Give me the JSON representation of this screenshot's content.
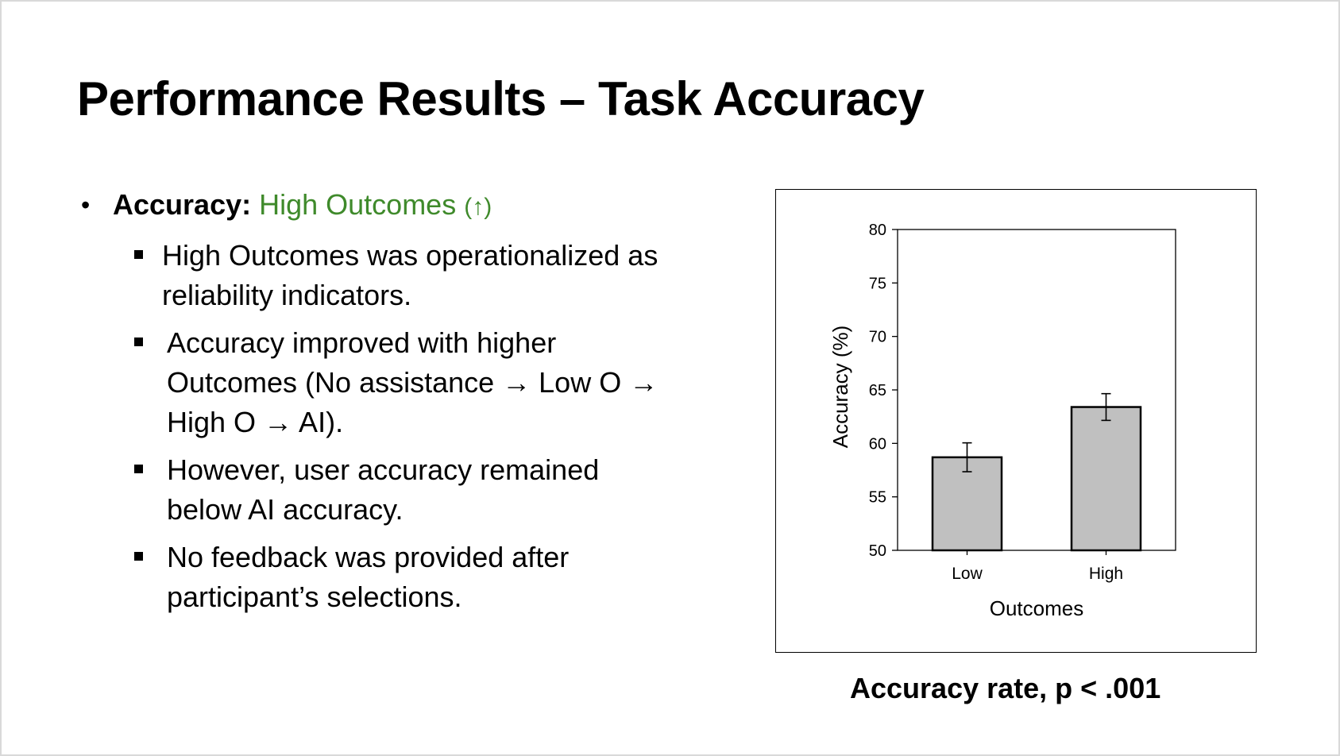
{
  "slide": {
    "title": "Performance Results – Task Accuracy",
    "bullet": {
      "lead": "Accuracy:",
      "highlight": "High Outcomes",
      "arrow": "(↑)",
      "highlight_color": "#3f8a2b"
    },
    "sub_bullets": [
      [
        "High Outcomes was operationalized as",
        "reliability indicators."
      ],
      [
        "Accuracy improved with higher",
        "Outcomes (No assistance → Low O →",
        "High O → AI)."
      ],
      [
        "However, user accuracy remained",
        "below AI accuracy."
      ],
      [
        "No feedback was provided after",
        "participant’s selections."
      ]
    ],
    "caption": "Accuracy rate, p < .001"
  },
  "chart_data": {
    "type": "bar",
    "categories": [
      "Low",
      "High"
    ],
    "values": [
      58.7,
      63.4
    ],
    "error": [
      1.35,
      1.25
    ],
    "xlabel": "Outcomes",
    "ylabel": "Accuracy (%)",
    "ylim": [
      50,
      80
    ],
    "yticks": [
      50,
      55,
      60,
      65,
      70,
      75,
      80
    ],
    "bar_color": "#c0c0c0",
    "grid": false
  }
}
